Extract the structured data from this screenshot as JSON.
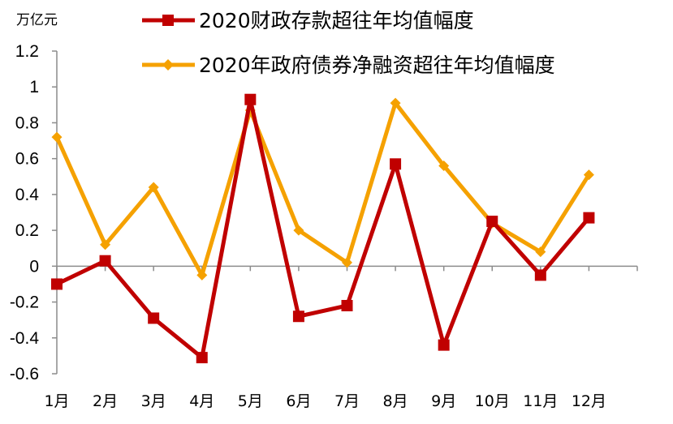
{
  "chart_data": {
    "type": "line",
    "unit_label": "万亿元",
    "categories": [
      "1月",
      "2月",
      "3月",
      "4月",
      "5月",
      "6月",
      "7月",
      "8月",
      "9月",
      "10月",
      "11月",
      "12月"
    ],
    "ylim": [
      -0.6,
      1.2
    ],
    "yticks": [
      "1.2",
      "1",
      "0.8",
      "0.6",
      "0.4",
      "0.2",
      "0",
      "-0.2",
      "-0.4",
      "-0.6"
    ],
    "ytick_values": [
      1.2,
      1,
      0.8,
      0.6,
      0.4,
      0.2,
      0,
      -0.2,
      -0.4,
      -0.6
    ],
    "grid": false,
    "legend_position": "top",
    "series": [
      {
        "name": "2020财政存款超往年均值幅度",
        "color": "#c00000",
        "marker": "square",
        "values": [
          -0.1,
          0.03,
          -0.29,
          -0.51,
          0.93,
          -0.28,
          -0.22,
          0.57,
          -0.44,
          0.25,
          -0.05,
          0.27
        ]
      },
      {
        "name": "2020年政府债券净融资超往年均值幅度",
        "color": "#f5a100",
        "marker": "diamond",
        "values": [
          0.72,
          0.12,
          0.44,
          -0.05,
          0.87,
          0.2,
          0.02,
          0.91,
          0.56,
          0.24,
          0.08,
          0.51
        ]
      }
    ]
  }
}
